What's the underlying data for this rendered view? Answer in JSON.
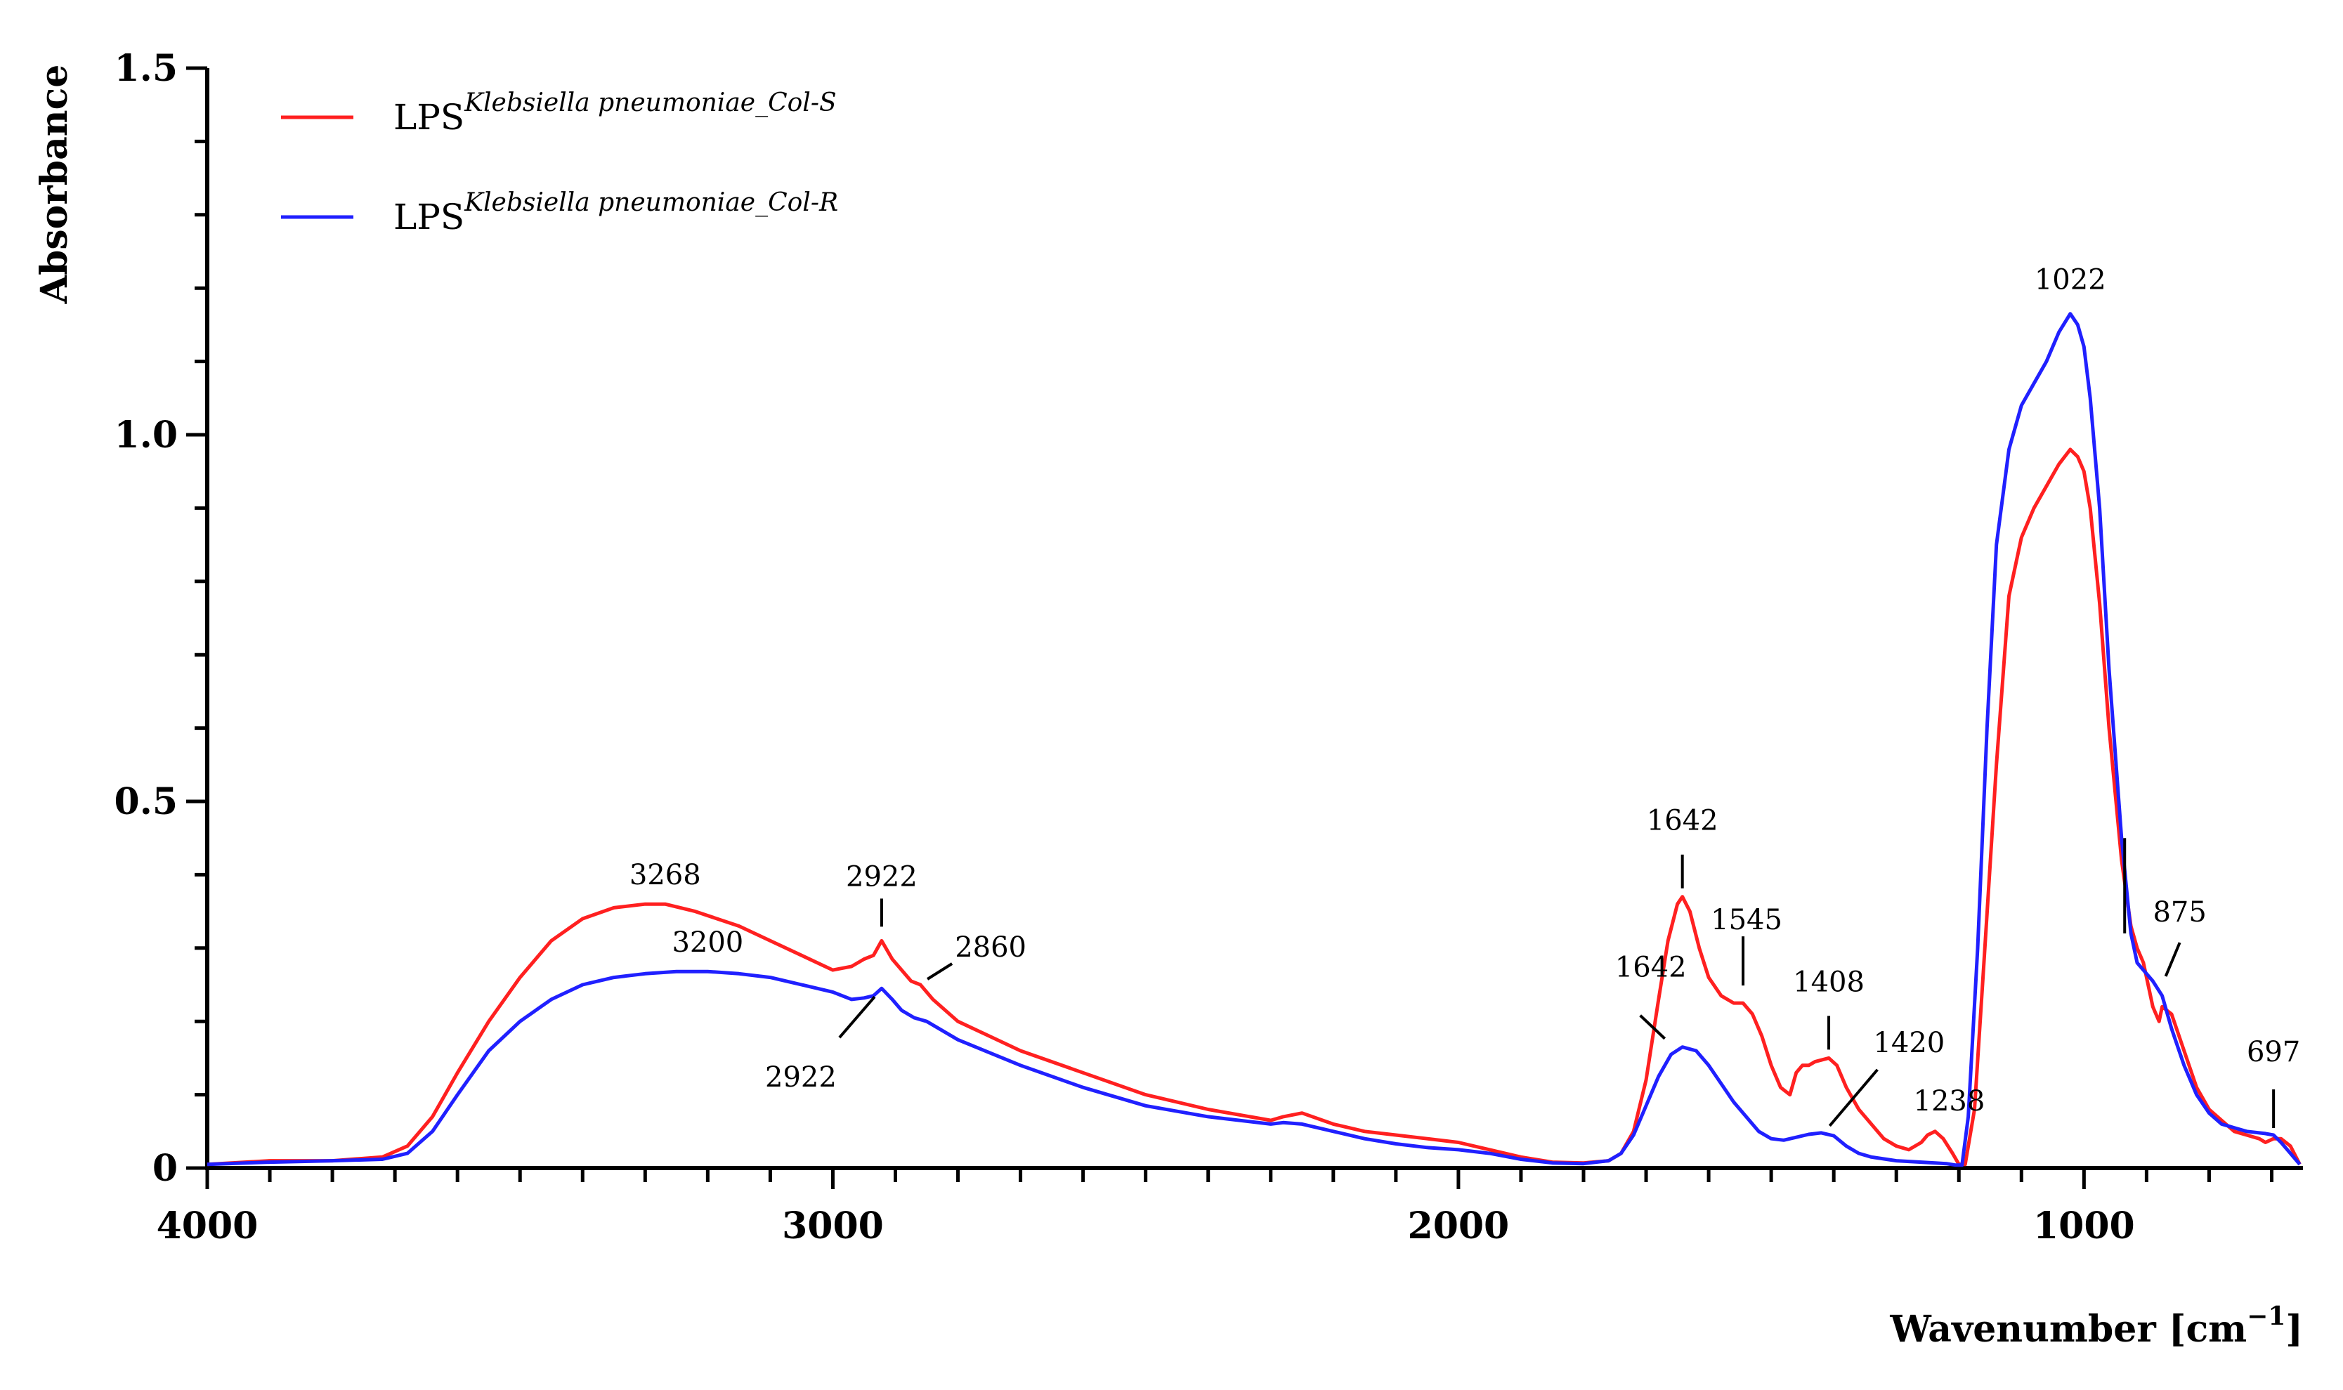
{
  "chart_data": {
    "type": "line",
    "title": "",
    "xlabel": "Wavenumber [cm",
    "xlabel_sup": "−1",
    "xlabel_close": "]",
    "ylabel": "Absorbance",
    "xlim": [
      4000,
      650
    ],
    "ylim": [
      0,
      1.5
    ],
    "x_ticks": [
      4000,
      3000,
      2000,
      1000
    ],
    "x_tick_labels": [
      "4000",
      "3000",
      "2000",
      "1000"
    ],
    "y_ticks": [
      0,
      0.5,
      1.0,
      1.5
    ],
    "y_tick_labels": [
      "0",
      "0.5",
      "1.0",
      "1.5"
    ],
    "legend": {
      "placement": "top-left",
      "entries": [
        {
          "prefix": "LPS",
          "sup": "Klebsiella pneumoniae_Col-S",
          "color": "#ff2020"
        },
        {
          "prefix": "LPS",
          "sup": "Klebsiella pneumoniae_Col-R",
          "color": "#2020ff"
        }
      ]
    },
    "series": [
      {
        "name": "LPS Klebsiella pneumoniae_Col-S",
        "color": "#ff2020",
        "x": [
          4000,
          3900,
          3800,
          3720,
          3680,
          3640,
          3600,
          3550,
          3500,
          3450,
          3400,
          3350,
          3300,
          3268,
          3220,
          3150,
          3100,
          3050,
          3000,
          2970,
          2950,
          2935,
          2922,
          2905,
          2890,
          2875,
          2860,
          2840,
          2800,
          2700,
          2600,
          2500,
          2400,
          2300,
          2280,
          2250,
          2200,
          2150,
          2100,
          2050,
          2000,
          1950,
          1900,
          1850,
          1800,
          1760,
          1740,
          1720,
          1700,
          1680,
          1665,
          1650,
          1642,
          1630,
          1615,
          1600,
          1580,
          1560,
          1545,
          1530,
          1515,
          1500,
          1485,
          1470,
          1460,
          1450,
          1440,
          1430,
          1408,
          1395,
          1380,
          1360,
          1340,
          1320,
          1300,
          1280,
          1260,
          1250,
          1238,
          1225,
          1210,
          1200,
          1190,
          1175,
          1160,
          1140,
          1120,
          1100,
          1080,
          1060,
          1040,
          1022,
          1010,
          1000,
          990,
          975,
          960,
          940,
          925,
          915,
          905,
          890,
          880,
          875,
          860,
          840,
          820,
          800,
          780,
          760,
          740,
          720,
          710,
          697,
          685,
          670,
          655
        ],
        "y": [
          0.005,
          0.01,
          0.01,
          0.015,
          0.03,
          0.07,
          0.13,
          0.2,
          0.26,
          0.31,
          0.34,
          0.355,
          0.36,
          0.36,
          0.35,
          0.33,
          0.31,
          0.29,
          0.27,
          0.275,
          0.285,
          0.29,
          0.31,
          0.285,
          0.27,
          0.255,
          0.25,
          0.23,
          0.2,
          0.16,
          0.13,
          0.1,
          0.08,
          0.065,
          0.07,
          0.075,
          0.06,
          0.05,
          0.045,
          0.04,
          0.035,
          0.025,
          0.015,
          0.008,
          0.007,
          0.01,
          0.02,
          0.05,
          0.12,
          0.23,
          0.31,
          0.36,
          0.37,
          0.35,
          0.3,
          0.26,
          0.235,
          0.225,
          0.225,
          0.21,
          0.18,
          0.14,
          0.11,
          0.1,
          0.13,
          0.14,
          0.14,
          0.145,
          0.15,
          0.14,
          0.11,
          0.08,
          0.06,
          0.04,
          0.03,
          0.025,
          0.035,
          0.045,
          0.05,
          0.04,
          0.02,
          0.005,
          0.005,
          0.08,
          0.28,
          0.55,
          0.78,
          0.86,
          0.9,
          0.93,
          0.96,
          0.98,
          0.97,
          0.95,
          0.9,
          0.77,
          0.6,
          0.42,
          0.33,
          0.3,
          0.28,
          0.22,
          0.2,
          0.22,
          0.21,
          0.16,
          0.11,
          0.08,
          0.065,
          0.05,
          0.045,
          0.04,
          0.035,
          0.04,
          0.04,
          0.03,
          0.005
        ]
      },
      {
        "name": "LPS Klebsiella pneumoniae_Col-R",
        "color": "#2020ff",
        "x": [
          4000,
          3900,
          3800,
          3720,
          3680,
          3640,
          3600,
          3550,
          3500,
          3450,
          3400,
          3350,
          3300,
          3250,
          3200,
          3150,
          3100,
          3050,
          3000,
          2970,
          2950,
          2935,
          2922,
          2905,
          2890,
          2870,
          2850,
          2800,
          2700,
          2600,
          2500,
          2400,
          2300,
          2280,
          2250,
          2200,
          2150,
          2100,
          2050,
          2000,
          1950,
          1900,
          1850,
          1800,
          1760,
          1740,
          1720,
          1700,
          1680,
          1660,
          1642,
          1620,
          1600,
          1580,
          1560,
          1540,
          1520,
          1500,
          1480,
          1460,
          1440,
          1420,
          1400,
          1380,
          1360,
          1340,
          1300,
          1260,
          1238,
          1220,
          1205,
          1195,
          1185,
          1170,
          1155,
          1140,
          1120,
          1100,
          1080,
          1060,
          1040,
          1022,
          1010,
          1000,
          990,
          975,
          960,
          940,
          925,
          915,
          905,
          890,
          875,
          860,
          840,
          820,
          800,
          780,
          760,
          740,
          720,
          710,
          697,
          685,
          670,
          655
        ],
        "y": [
          0.005,
          0.008,
          0.01,
          0.012,
          0.02,
          0.05,
          0.1,
          0.16,
          0.2,
          0.23,
          0.25,
          0.26,
          0.265,
          0.268,
          0.268,
          0.265,
          0.26,
          0.25,
          0.24,
          0.23,
          0.232,
          0.235,
          0.245,
          0.23,
          0.215,
          0.205,
          0.2,
          0.175,
          0.14,
          0.11,
          0.085,
          0.07,
          0.06,
          0.062,
          0.06,
          0.05,
          0.04,
          0.033,
          0.028,
          0.025,
          0.02,
          0.012,
          0.007,
          0.006,
          0.01,
          0.02,
          0.045,
          0.085,
          0.125,
          0.155,
          0.165,
          0.16,
          0.14,
          0.115,
          0.09,
          0.07,
          0.05,
          0.04,
          0.038,
          0.042,
          0.046,
          0.048,
          0.044,
          0.03,
          0.02,
          0.015,
          0.01,
          0.008,
          0.007,
          0.006,
          0.004,
          0.004,
          0.07,
          0.3,
          0.6,
          0.85,
          0.98,
          1.04,
          1.07,
          1.1,
          1.14,
          1.165,
          1.15,
          1.12,
          1.05,
          0.9,
          0.68,
          0.45,
          0.32,
          0.28,
          0.27,
          0.255,
          0.235,
          0.19,
          0.14,
          0.1,
          0.075,
          0.06,
          0.055,
          0.05,
          0.048,
          0.047,
          0.045,
          0.035,
          0.02,
          0.005
        ]
      }
    ],
    "annotations": [
      {
        "text": "3268",
        "x": 3268,
        "y": 0.36,
        "series": "Col-S",
        "leader": "none"
      },
      {
        "text": "2922",
        "x": 2922,
        "y": 0.31,
        "series": "Col-S",
        "leader": "vertical"
      },
      {
        "text": "2860",
        "x": 2860,
        "y": 0.25,
        "series": "Col-S",
        "leader": "diagonal"
      },
      {
        "text": "3200",
        "x": 3200,
        "y": 0.268,
        "series": "Col-R",
        "leader": "none"
      },
      {
        "text": "2922",
        "x": 2922,
        "y": 0.245,
        "series": "Col-R",
        "leader": "diagonal-down"
      },
      {
        "text": "1642",
        "x": 1642,
        "y": 0.37,
        "series": "Col-S",
        "leader": "vertical"
      },
      {
        "text": "1545",
        "x": 1545,
        "y": 0.225,
        "series": "Col-S",
        "leader": "vertical"
      },
      {
        "text": "1408",
        "x": 1408,
        "y": 0.15,
        "series": "Col-S",
        "leader": "vertical"
      },
      {
        "text": "1238",
        "x": 1238,
        "y": 0.05,
        "series": "Col-S",
        "leader": "none"
      },
      {
        "text": "1642",
        "x": 1642,
        "y": 0.165,
        "series": "Col-R",
        "leader": "diagonal"
      },
      {
        "text": "1420",
        "x": 1420,
        "y": 0.048,
        "series": "Col-R",
        "leader": "diagonal"
      },
      {
        "text": "1022",
        "x": 1022,
        "y": 1.165,
        "series": "Col-R",
        "leader": "none"
      },
      {
        "text": "875",
        "x": 875,
        "y": 0.25,
        "series": "Col-R",
        "leader": "diagonal"
      },
      {
        "text": "697",
        "x": 697,
        "y": 0.045,
        "series": "Col-R",
        "leader": "vertical"
      }
    ]
  }
}
